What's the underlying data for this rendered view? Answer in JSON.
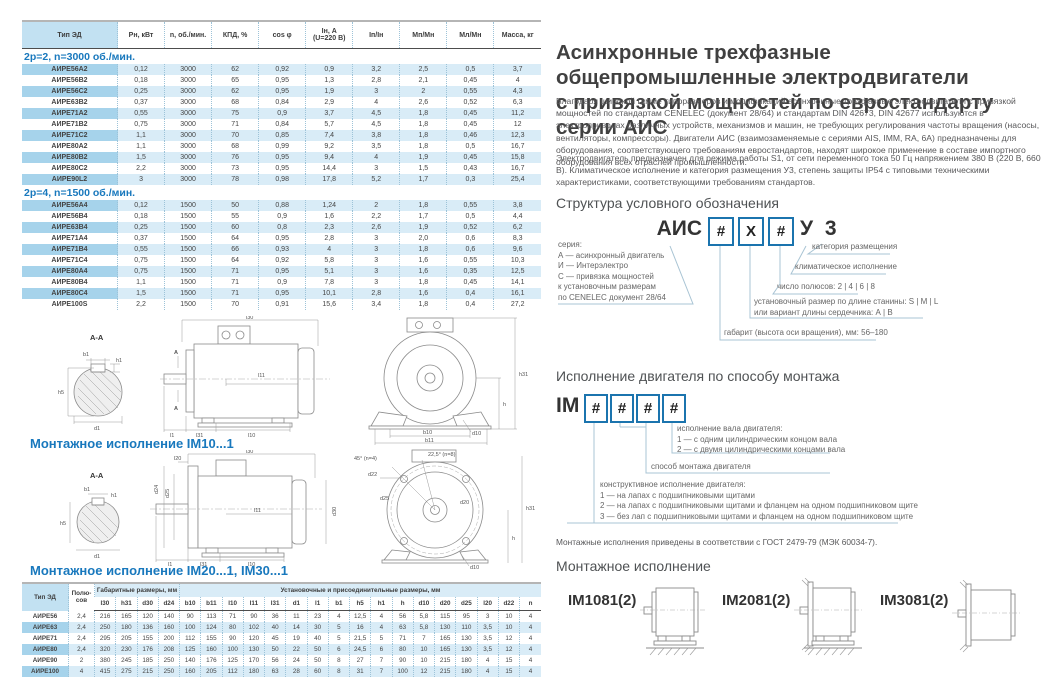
{
  "spec_table": {
    "headers": [
      "Тип ЭД",
      "Рн, кВт",
      "n, об./мин.",
      "КПД, %",
      "cos φ",
      "Iн, А\n(U=220 В)",
      "Iп/Iн",
      "Мп/Мн",
      "Мл/Мн",
      "Масса, кг"
    ],
    "sections": [
      {
        "title": "2р=2, n=3000 об./мин.",
        "rows": [
          [
            "АИРЕ56А2",
            "0,12",
            "3000",
            "62",
            "0,92",
            "0,9",
            "3,2",
            "2,5",
            "0,5",
            "3,7"
          ],
          [
            "АИРЕ56В2",
            "0,18",
            "3000",
            "65",
            "0,95",
            "1,3",
            "2,8",
            "2,1",
            "0,45",
            "4"
          ],
          [
            "АИРЕ56С2",
            "0,25",
            "3000",
            "62",
            "0,95",
            "1,9",
            "3",
            "2",
            "0,55",
            "4,3"
          ],
          [
            "АИРЕ63В2",
            "0,37",
            "3000",
            "68",
            "0,84",
            "2,9",
            "4",
            "2,6",
            "0,52",
            "6,3"
          ],
          [
            "АИРЕ71А2",
            "0,55",
            "3000",
            "75",
            "0,9",
            "3,7",
            "4,5",
            "1,8",
            "0,45",
            "11,2"
          ],
          [
            "АИРЕ71В2",
            "0,75",
            "3000",
            "71",
            "0,84",
            "5,7",
            "4,5",
            "1,8",
            "0,45",
            "12"
          ],
          [
            "АИРЕ71С2",
            "1,1",
            "3000",
            "70",
            "0,85",
            "7,4",
            "3,8",
            "1,8",
            "0,46",
            "12,3"
          ],
          [
            "АИРЕ80А2",
            "1,1",
            "3000",
            "68",
            "0,99",
            "9,2",
            "3,5",
            "1,8",
            "0,5",
            "16,7"
          ],
          [
            "АИРЕ80В2",
            "1,5",
            "3000",
            "76",
            "0,95",
            "9,4",
            "4",
            "1,9",
            "0,45",
            "15,8"
          ],
          [
            "АИРЕ80С2",
            "2,2",
            "3000",
            "73",
            "0,95",
            "14,4",
            "3",
            "1,5",
            "0,43",
            "16,7"
          ],
          [
            "АИРЕ90L2",
            "3",
            "3000",
            "78",
            "0,98",
            "17,8",
            "5,2",
            "1,7",
            "0,3",
            "25,4"
          ]
        ]
      },
      {
        "title": "2р=4, n=1500 об./мин.",
        "rows": [
          [
            "АИРЕ56А4",
            "0,12",
            "1500",
            "50",
            "0,88",
            "1,24",
            "2",
            "1,8",
            "0,55",
            "3,8"
          ],
          [
            "АИРЕ56В4",
            "0,18",
            "1500",
            "55",
            "0,9",
            "1,6",
            "2,2",
            "1,7",
            "0,5",
            "4,4"
          ],
          [
            "АИРЕ63В4",
            "0,25",
            "1500",
            "60",
            "0,8",
            "2,3",
            "2,6",
            "1,9",
            "0,52",
            "6,2"
          ],
          [
            "АИРЕ71А4",
            "0,37",
            "1500",
            "64",
            "0,95",
            "2,8",
            "3",
            "2,0",
            "0,6",
            "8,3"
          ],
          [
            "АИРЕ71В4",
            "0,55",
            "1500",
            "66",
            "0,93",
            "4",
            "3",
            "1,8",
            "0,6",
            "9,6"
          ],
          [
            "АИРЕ71С4",
            "0,75",
            "1500",
            "64",
            "0,92",
            "5,8",
            "3",
            "1,6",
            "0,55",
            "10,3"
          ],
          [
            "АИРЕ80А4",
            "0,75",
            "1500",
            "71",
            "0,95",
            "5,1",
            "3",
            "1,6",
            "0,35",
            "12,5"
          ],
          [
            "АИРЕ80В4",
            "1,1",
            "1500",
            "71",
            "0,9",
            "7,8",
            "3",
            "1,8",
            "0,45",
            "14,1"
          ],
          [
            "АИРЕ80С4",
            "1,5",
            "1500",
            "71",
            "0,95",
            "10,1",
            "2,8",
            "1,6",
            "0,4",
            "16,1"
          ],
          [
            "АИРЕ100S",
            "2,2",
            "1500",
            "70",
            "0,91",
            "15,6",
            "3,4",
            "1,8",
            "0,4",
            "27,2"
          ]
        ]
      }
    ]
  },
  "dim_table": {
    "col_type": "Тип ЭД",
    "col_poles": "Полю-сов",
    "group1": "Габаритные размеры, мм",
    "group2": "Установочные и присоединительные размеры, мм",
    "sub": [
      "l30",
      "h31",
      "d30",
      "d24",
      "b10",
      "b11",
      "l10",
      "l11",
      "l31",
      "d1",
      "l1",
      "b1",
      "h5",
      "h1",
      "h",
      "d10",
      "d20",
      "d25",
      "l20",
      "d22",
      "n"
    ],
    "rows": [
      [
        "АИРЕ56",
        "2,4",
        "216",
        "165",
        "120",
        "140",
        "90",
        "113",
        "71",
        "90",
        "36",
        "11",
        "23",
        "4",
        "12,5",
        "4",
        "56",
        "5,8",
        "115",
        "95",
        "3",
        "10",
        "4"
      ],
      [
        "АИРЕ63",
        "2,4",
        "250",
        "180",
        "136",
        "160",
        "100",
        "124",
        "80",
        "102",
        "40",
        "14",
        "30",
        "5",
        "16",
        "4",
        "63",
        "5,8",
        "130",
        "110",
        "3,5",
        "10",
        "4"
      ],
      [
        "АИРЕ71",
        "2,4",
        "295",
        "205",
        "155",
        "200",
        "112",
        "155",
        "90",
        "120",
        "45",
        "19",
        "40",
        "5",
        "21,5",
        "5",
        "71",
        "7",
        "165",
        "130",
        "3,5",
        "12",
        "4"
      ],
      [
        "АИРЕ80",
        "2,4",
        "320",
        "230",
        "176",
        "208",
        "125",
        "160",
        "100",
        "130",
        "50",
        "22",
        "50",
        "6",
        "24,5",
        "6",
        "80",
        "10",
        "165",
        "130",
        "3,5",
        "12",
        "4"
      ],
      [
        "АИРЕ90",
        "2",
        "380",
        "245",
        "185",
        "250",
        "140",
        "176",
        "125",
        "170",
        "56",
        "24",
        "50",
        "8",
        "27",
        "7",
        "90",
        "10",
        "215",
        "180",
        "4",
        "15",
        "4"
      ],
      [
        "АИРЕ100",
        "4",
        "415",
        "275",
        "215",
        "250",
        "160",
        "205",
        "112",
        "180",
        "63",
        "28",
        "60",
        "8",
        "31",
        "7",
        "100",
        "12",
        "215",
        "180",
        "4",
        "15",
        "4"
      ]
    ]
  },
  "drawings": {
    "im10_heading": "Монтажное исполнение IM10...1",
    "im20_heading": "Монтажное исполнение IM20...1, IM30...1"
  },
  "dim_labels": {
    "aa_title": "А-А",
    "marker": "А",
    "b1": "b1",
    "h1": "h1",
    "h5": "h5",
    "d1": "d1",
    "l30": "l30",
    "l11": "l11",
    "l1": "l1",
    "l31": "l31",
    "l10": "l10",
    "h31": "h31",
    "h": "h",
    "d10": "d10",
    "b10": "b10",
    "b11": "b11",
    "l20": "l20",
    "d24": "d24",
    "d25": "d25",
    "d30": "d30",
    "d20": "d20",
    "d22": "d22",
    "deg45": "45° (n=4)",
    "deg225": "22,5° (n=8)"
  },
  "article": {
    "title_line1": "Асинхронные трехфазные общепромышленные электродвигатели",
    "title_line2": "с привязкой мощностей по евростандарту серии АИС",
    "p1": "Благодаря широкой гамме типоразмеров и модификаций асинхронные трёхфазные электродвигатели с привязкой мощностей по стандартам CENELEC (документ 28/64) и стандартам DIN 42673, DIN 42677 используются в электроприводах различных устройств, механизмов и машин, не требующих регулирования частоты вращения (насосы, вентиляторы, компрессоры). Двигатели АИС (взаимозаменяемые с сериями AIS, IMM, RA, 6А) предназначены для оборудования, соответствующего требованиям евростандартов, находят широкое применение в составе импортного оборудования всех отраслей промышленности.",
    "p2": "Электродвигатель предназначен для режима работы S1, от сети переменного тока 50 Гц напряжением 380 В (220 В, 660 В). Климатическое исполнение и категория размещения У3, степень защиты IP54 с типовыми техническими характеристиками, соответствующими требованиям стандартов."
  },
  "designation": {
    "heading": "Структура условного обозначения",
    "prefix": "АИС",
    "box1": "#",
    "box2": "X",
    "box3": "#",
    "suffix": "У 3",
    "series_block": "серия:\nА — асинхронный двигатель\nИ — Интерэлектро\nС — привязка мощностей\n      к установочным размерам\n      по CENELEC документ 28/64",
    "c1": "категория размещения",
    "c2": "климатическое исполнение",
    "c3": "число полюсов: 2 | 4 | 6 | 8",
    "c4": "установочный размер по длине станины: S | M | L\nили вариант длины сердечника: А | В",
    "c5": "габарит (высота оси вращения), мм: 56–180"
  },
  "mounting_code": {
    "heading": "Исполнение двигателя по способу монтажа",
    "prefix": "IM",
    "box1": "#",
    "box2": "#",
    "box3": "#",
    "box4": "#",
    "shaft_block": "исполнение вала двигателя:\n1 — с одним цилиндрическим концом вала\n2 — с двумя цилиндрическими концами вала",
    "method_label": "способ монтажа двигателя",
    "design_block": "конструктивное исполнение двигателя:\n1 — на лапах с подшипниковыми щитами\n2 — на лапах с подшипниковыми щитами и фланцем на одном подшипниковом щите\n3 — без лап с подшипниковыми щитами и фланцем на одном подшипниковом щите",
    "note": "Монтажные исполнения приведены в соответствии с ГОСТ 2479-79 (МЭК 60034-7)."
  },
  "mount_exec": {
    "heading": "Монтажное исполнение",
    "item1": "IM1081(2)",
    "item2": "IM2081(2)",
    "item3": "IM3081(2)"
  },
  "colors": {
    "accent_blue": "#1878bd",
    "box_border": "#1b74ae",
    "row_highlight": "#d9ecf7",
    "type_highlight": "#a6d3eb",
    "header_cell": "#c2e1f2"
  }
}
